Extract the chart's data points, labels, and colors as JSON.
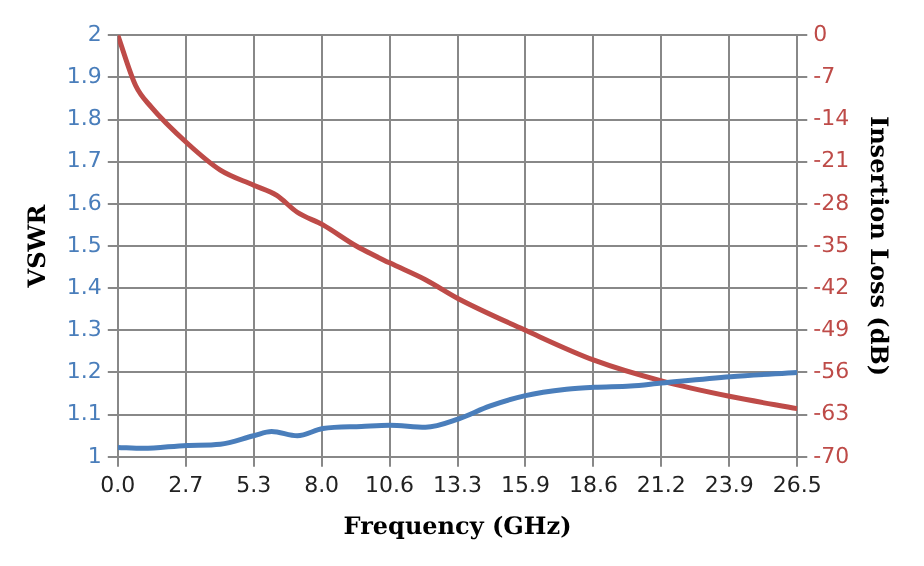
{
  "chart_data": {
    "type": "line",
    "xlabel": "Frequency (GHz)",
    "ylabel": "VSWR",
    "y2label": "Insertion Loss (dB)",
    "xlim": [
      0,
      26.5
    ],
    "xticks": [
      {
        "value": 0,
        "label": "0.0"
      },
      {
        "value": 2.65,
        "label": "2.7"
      },
      {
        "value": 5.3,
        "label": "5.3"
      },
      {
        "value": 7.95,
        "label": "8.0"
      },
      {
        "value": 10.6,
        "label": "10.6"
      },
      {
        "value": 13.25,
        "label": "13.3"
      },
      {
        "value": 15.9,
        "label": "15.9"
      },
      {
        "value": 18.55,
        "label": "18.6"
      },
      {
        "value": 21.2,
        "label": "21.2"
      },
      {
        "value": 23.85,
        "label": "23.9"
      },
      {
        "value": 26.5,
        "label": "26.5"
      }
    ],
    "ylim": [
      1,
      2
    ],
    "yticks": [
      1,
      1.1,
      1.2,
      1.3,
      1.4,
      1.5,
      1.6,
      1.7,
      1.8,
      1.9,
      2
    ],
    "y2lim": [
      -70,
      0
    ],
    "y2ticks": [
      -70,
      -63,
      -56,
      -49,
      -42,
      -35,
      -28,
      -21,
      -14,
      -7,
      0
    ],
    "grid": true,
    "legend": false,
    "series": [
      {
        "color": "#4a7ebb",
        "x": [
          0,
          1,
          2.7,
          4,
          5.3,
          6,
          7,
          8,
          9.5,
          10.6,
          12,
          13.3,
          14.5,
          15.9,
          17.5,
          18.6,
          20,
          21.2,
          23.9,
          26.5
        ],
        "values": [
          1.022,
          1.02,
          1.027,
          1.03,
          1.05,
          1.06,
          1.05,
          1.067,
          1.072,
          1.075,
          1.07,
          1.09,
          1.12,
          1.145,
          1.16,
          1.165,
          1.168,
          1.175,
          1.19,
          1.2
        ]
      },
      {
        "color": "#be4b48",
        "axis": "y2",
        "x": [
          0,
          0.7,
          1.3,
          2.7,
          4,
          5.3,
          6.2,
          7,
          8,
          9.3,
          10.6,
          12,
          13.3,
          15.9,
          18.6,
          21.2,
          23.9,
          26.5
        ],
        "values": [
          0,
          -8.4,
          -11.9,
          -17.9,
          -22.4,
          -24.9,
          -26.6,
          -29.4,
          -31.5,
          -35,
          -37.8,
          -40.6,
          -43.8,
          -49,
          -54,
          -57.4,
          -60,
          -62
        ]
      }
    ]
  }
}
